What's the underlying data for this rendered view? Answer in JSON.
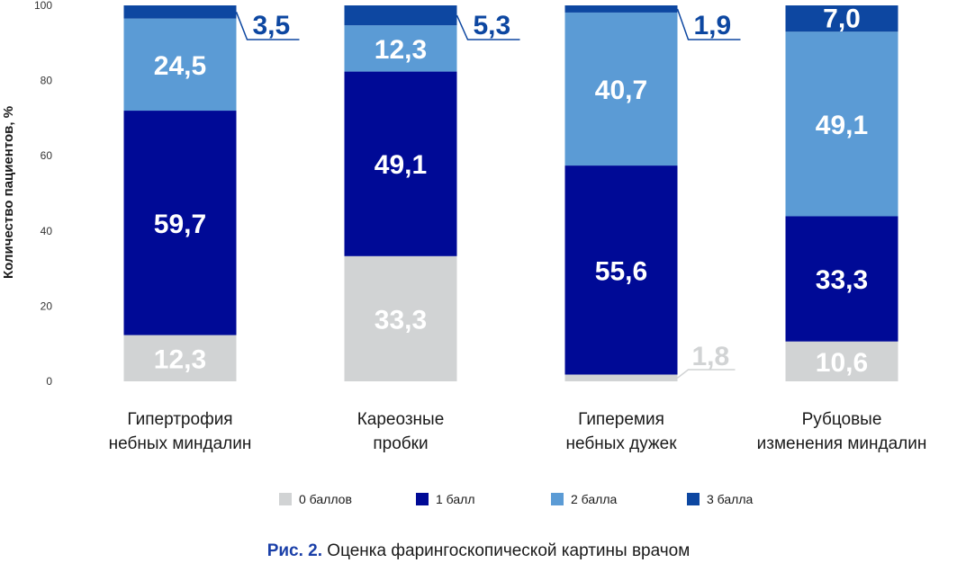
{
  "caption": {
    "fig_label": "Рис. 2.",
    "text": "Оценка фарингоскопической картины врачом"
  },
  "chart_data": {
    "type": "bar",
    "stacked": true,
    "title": "",
    "xlabel": "",
    "ylabel": "Количество пациентов, %",
    "ylim": [
      0,
      100
    ],
    "yticks": [
      0,
      20,
      40,
      60,
      80,
      100
    ],
    "grid": false,
    "legend_position": "bottom",
    "categories": [
      [
        "Гипертрофия",
        "небных миндалин"
      ],
      [
        "Кареозные",
        "пробки"
      ],
      [
        "Гиперемия",
        "небных дужек"
      ],
      [
        "Рубцовые",
        "изменения миндалин"
      ]
    ],
    "series": [
      {
        "name": "0 баллов",
        "color": "#d1d3d4",
        "values": [
          12.3,
          33.3,
          1.8,
          10.6
        ],
        "labels": [
          "12,3",
          "33,3",
          "1,8",
          "10,6"
        ]
      },
      {
        "name": "1 балл",
        "color": "#000a96",
        "values": [
          59.7,
          49.1,
          55.6,
          33.3
        ],
        "labels": [
          "59,7",
          "49,1",
          "55,6",
          "33,3"
        ]
      },
      {
        "name": "2 балла",
        "color": "#5b9bd5",
        "values": [
          24.5,
          12.3,
          40.7,
          49.1
        ],
        "labels": [
          "24,5",
          "12,3",
          "40,7",
          "49,1"
        ]
      },
      {
        "name": "3 балла",
        "color": "#0d47a1",
        "values": [
          3.5,
          5.3,
          1.9,
          7.0
        ],
        "labels": [
          "3,5",
          "5,3",
          "1,9",
          "7,0"
        ]
      }
    ]
  }
}
